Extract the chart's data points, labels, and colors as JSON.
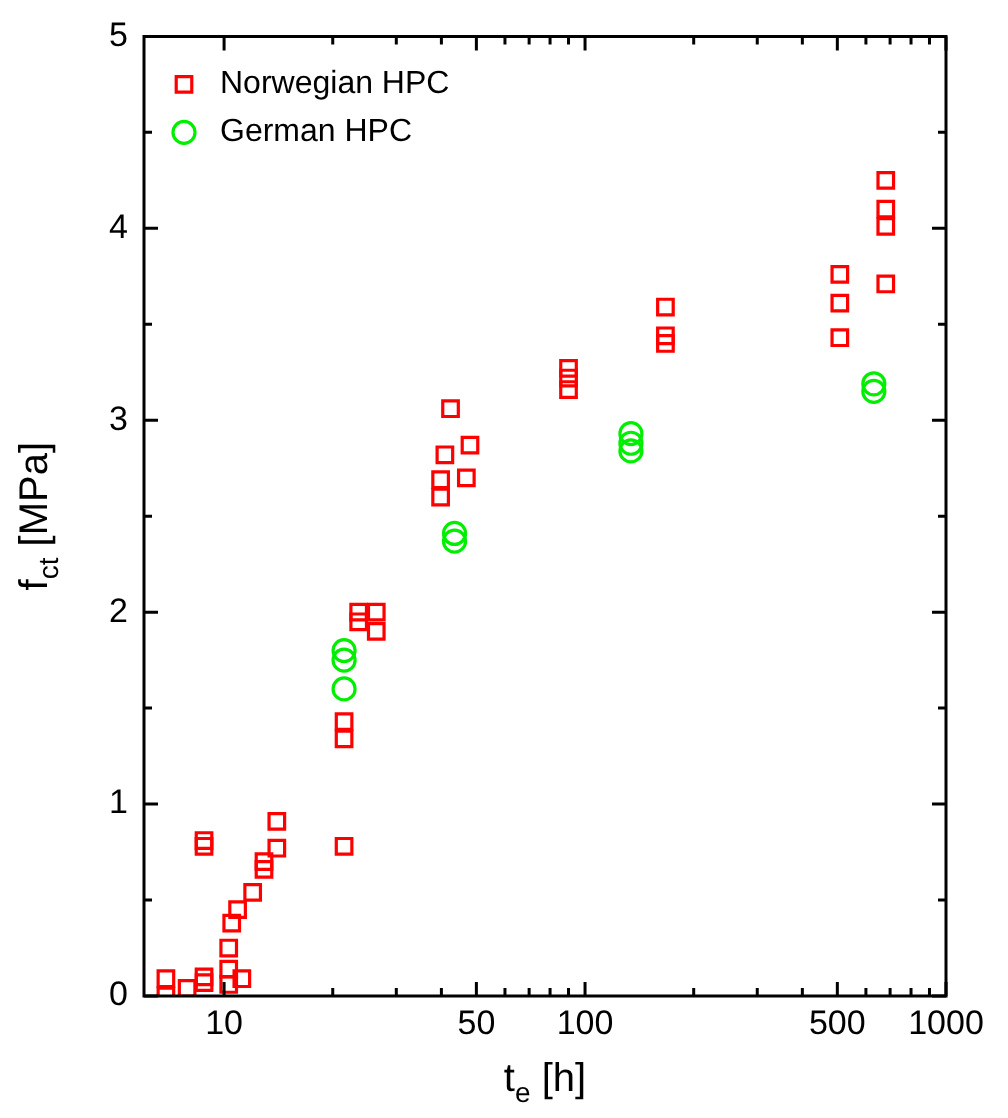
{
  "chart_data": {
    "type": "scatter",
    "xlabel": "t$_{e}$ [h]",
    "ylabel": "f$_{ct}$ [MPa]",
    "log": "x",
    "xlim": [
      6,
      1000
    ],
    "xticks": [
      {
        "value": 10,
        "label": "10"
      },
      {
        "value": 20,
        "label": null
      },
      {
        "value": 30,
        "label": null
      },
      {
        "value": 40,
        "label": null
      },
      {
        "value": 50,
        "label": "50"
      },
      {
        "value": 60,
        "label": null
      },
      {
        "value": 70,
        "label": null
      },
      {
        "value": 80,
        "label": null
      },
      {
        "value": 90,
        "label": null
      },
      {
        "value": 100,
        "label": "100"
      },
      {
        "value": 200,
        "label": null
      },
      {
        "value": 300,
        "label": null
      },
      {
        "value": 400,
        "label": null
      },
      {
        "value": 500,
        "label": "500"
      },
      {
        "value": 600,
        "label": null
      },
      {
        "value": 700,
        "label": null
      },
      {
        "value": 800,
        "label": null
      },
      {
        "value": 900,
        "label": null
      },
      {
        "value": 1000,
        "label": "1000"
      }
    ],
    "ylim": [
      0,
      5
    ],
    "yticks": [
      0,
      {
        "value": 0.5,
        "label": null
      },
      1,
      {
        "value": 1.5,
        "label": null
      },
      2,
      {
        "value": 2.5,
        "label": null
      },
      3,
      {
        "value": 3.5,
        "label": null
      },
      4,
      {
        "value": 4.5,
        "label": null
      },
      5
    ],
    "grid": false,
    "legend": "top left",
    "series": [
      {
        "name": "Norwegian HPC",
        "color": "#ff0000",
        "marker": "square",
        "x": [
          6.9,
          6.9,
          7.9,
          8.8,
          8.8,
          8.8,
          8.8,
          10.3,
          10.3,
          10.3,
          10.5,
          10.9,
          11.2,
          12,
          12.9,
          12.9,
          14,
          14,
          21.5,
          21.5,
          21.5,
          23.6,
          23.6,
          26.4,
          26.4,
          39.8,
          39.8,
          40.9,
          42.4,
          46.9,
          48,
          90,
          90,
          90,
          167,
          167,
          167,
          508,
          508,
          508,
          681,
          681,
          681,
          681
        ],
        "values": [
          0.09,
          0.0,
          0.04,
          0.78,
          0.81,
          0.07,
          0.1,
          0.14,
          0.06,
          0.25,
          0.38,
          0.45,
          0.09,
          0.54,
          0.66,
          0.7,
          0.77,
          0.91,
          0.78,
          1.34,
          1.43,
          2.0,
          1.95,
          2.0,
          1.9,
          2.6,
          2.69,
          2.82,
          3.06,
          2.7,
          2.87,
          3.27,
          3.22,
          3.16,
          3.59,
          3.44,
          3.4,
          3.76,
          3.61,
          3.43,
          4.25,
          4.1,
          4.01,
          3.71
        ]
      },
      {
        "name": "German HPC",
        "color": "#00ee00",
        "marker": "circle",
        "x": [
          21.5,
          21.5,
          21.5,
          43.5,
          43.5,
          134,
          134,
          134,
          631,
          631
        ],
        "values": [
          1.8,
          1.75,
          1.6,
          2.37,
          2.41,
          2.93,
          2.88,
          2.84,
          3.19,
          3.15
        ]
      }
    ]
  }
}
